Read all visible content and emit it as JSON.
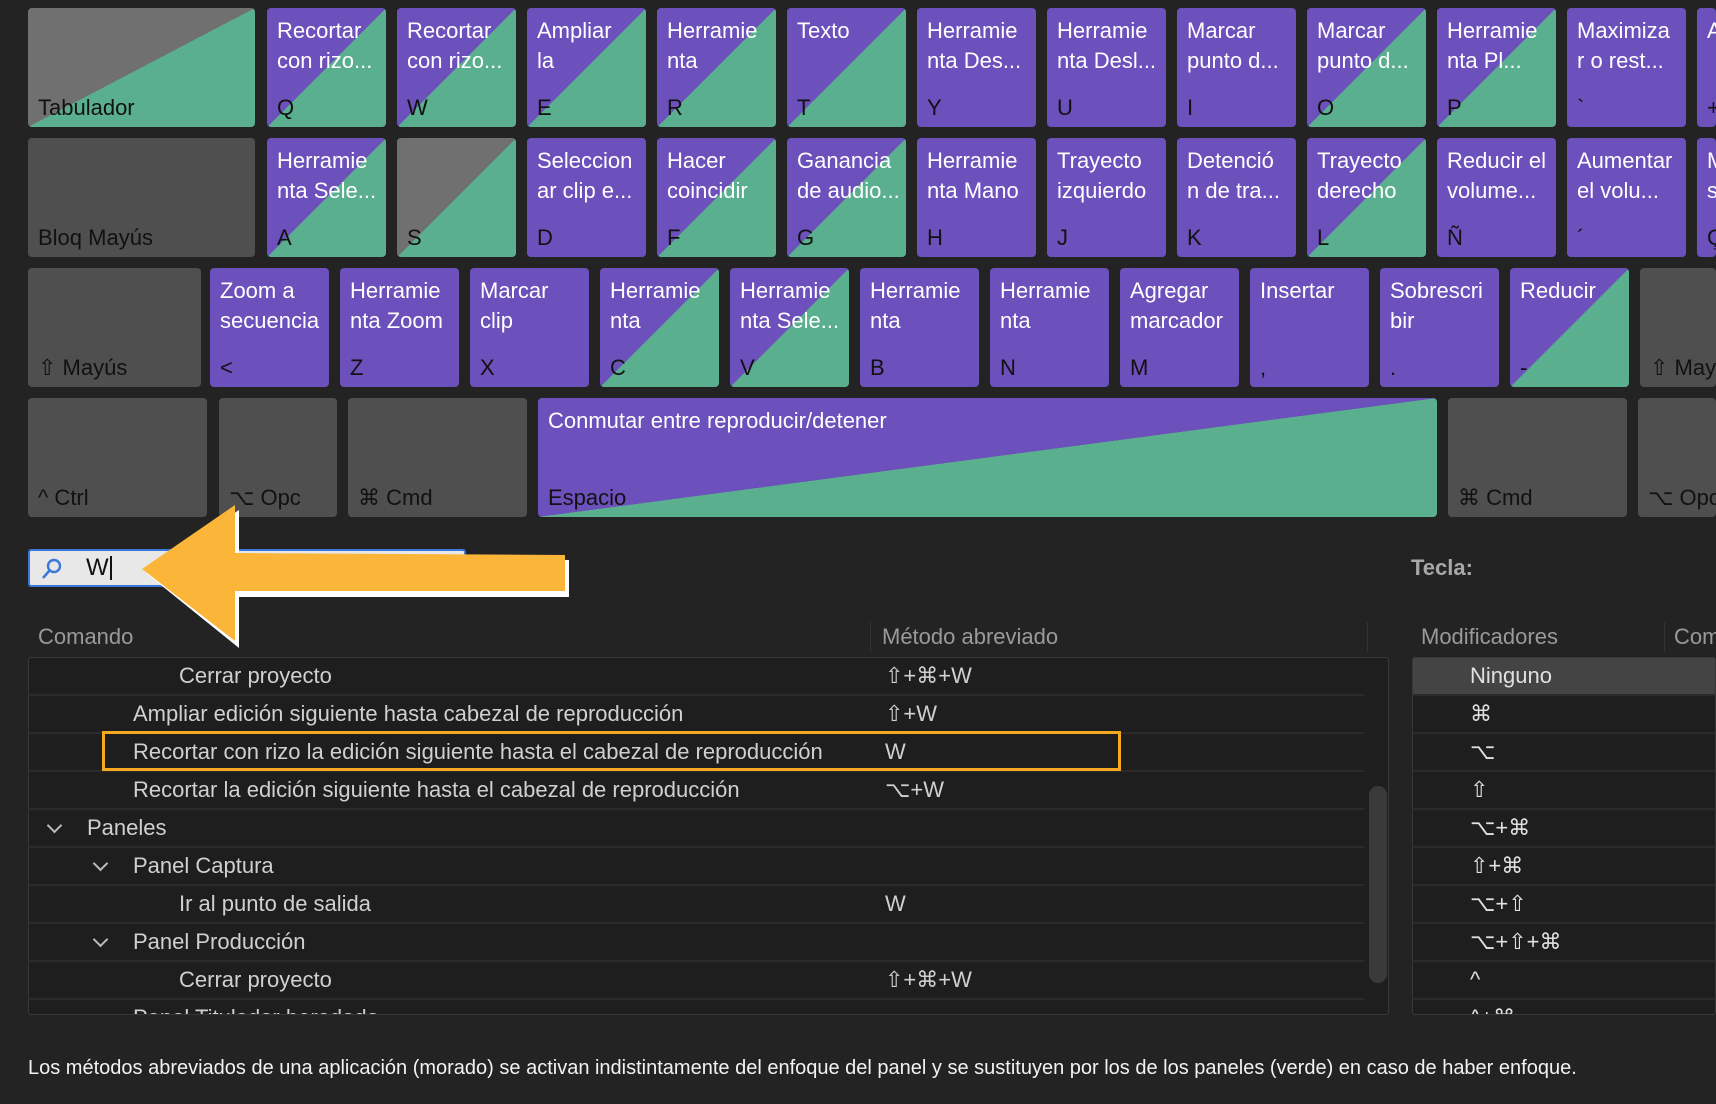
{
  "colors": {
    "app_shortcut": "#6c50bb",
    "panel_shortcut": "#5aaf8e",
    "highlight": "#f5a91e",
    "arrow": "#fbb63a"
  },
  "keyboard": {
    "rows": [
      [
        {
          "cmd": "",
          "key": "Tabulador",
          "type": "graygreen"
        },
        {
          "cmd": "Recortar\ncon rizo...",
          "key": "Q",
          "type": "both"
        },
        {
          "cmd": "Recortar\ncon rizo...",
          "key": "W",
          "type": "both"
        },
        {
          "cmd": "Ampliar\nla",
          "key": "E",
          "type": "both"
        },
        {
          "cmd": "Herramie\nnta",
          "key": "R",
          "type": "both"
        },
        {
          "cmd": "Texto",
          "key": "T",
          "type": "both"
        },
        {
          "cmd": "Herramie\nnta Des...",
          "key": "Y",
          "type": "purple"
        },
        {
          "cmd": "Herramie\nnta Desl...",
          "key": "U",
          "type": "purple"
        },
        {
          "cmd": "Marcar\npunto d...",
          "key": "I",
          "type": "purple"
        },
        {
          "cmd": "Marcar\npunto d...",
          "key": "O",
          "type": "both"
        },
        {
          "cmd": "Herramie\nnta Pl...",
          "key": "P",
          "type": "both"
        },
        {
          "cmd": "Maximiza\nr o rest...",
          "key": "`",
          "type": "purple"
        },
        {
          "cmd": "A",
          "key": "+",
          "type": "purple"
        }
      ],
      [
        {
          "cmd": "",
          "key": "Bloq Mayús",
          "type": "gray"
        },
        {
          "cmd": "Herramie\nnta Sele...",
          "key": "A",
          "type": "both"
        },
        {
          "cmd": "",
          "key": "S",
          "type": "graygreen"
        },
        {
          "cmd": "Seleccion\nar clip e...",
          "key": "D",
          "type": "purple"
        },
        {
          "cmd": "Hacer\ncoincidir",
          "key": "F",
          "type": "both"
        },
        {
          "cmd": "Ganancia\nde audio...",
          "key": "G",
          "type": "both"
        },
        {
          "cmd": "Herramie\nnta Mano",
          "key": "H",
          "type": "purple"
        },
        {
          "cmd": "Trayecto\nizquierdo",
          "key": "J",
          "type": "purple"
        },
        {
          "cmd": "Detenció\nn de tra...",
          "key": "K",
          "type": "purple"
        },
        {
          "cmd": "Trayecto\nderecho",
          "key": "L",
          "type": "both"
        },
        {
          "cmd": "Reducir el\nvolume...",
          "key": "Ñ",
          "type": "purple"
        },
        {
          "cmd": "Aumentar\nel volu...",
          "key": "´",
          "type": "purple"
        },
        {
          "cmd": "M\ns",
          "key": "Ç",
          "type": "purple"
        }
      ],
      [
        {
          "cmd": "",
          "key": "⇧ Mayús",
          "type": "gray"
        },
        {
          "cmd": "Zoom a\nsecuencia",
          "key": "<",
          "type": "purple"
        },
        {
          "cmd": "Herramie\nnta Zoom",
          "key": "Z",
          "type": "purple"
        },
        {
          "cmd": "Marcar\nclip",
          "key": "X",
          "type": "purple"
        },
        {
          "cmd": "Herramie\nnta",
          "key": "C",
          "type": "both"
        },
        {
          "cmd": "Herramie\nnta Sele...",
          "key": "V",
          "type": "both"
        },
        {
          "cmd": "Herramie\nnta",
          "key": "B",
          "type": "purple"
        },
        {
          "cmd": "Herramie\nnta",
          "key": "N",
          "type": "purple"
        },
        {
          "cmd": "Agregar\nmarcador",
          "key": "M",
          "type": "purple"
        },
        {
          "cmd": "Insertar",
          "key": ",",
          "type": "purple"
        },
        {
          "cmd": "Sobrescri\nbir",
          "key": ".",
          "type": "purple"
        },
        {
          "cmd": "Reducir",
          "key": "-",
          "type": "both"
        },
        {
          "cmd": "",
          "key": "⇧ Mayús",
          "type": "gray"
        }
      ],
      [
        {
          "cmd": "",
          "key": "^ Ctrl",
          "type": "gray"
        },
        {
          "cmd": "",
          "key": "⌥ Opc",
          "type": "gray"
        },
        {
          "cmd": "",
          "key": "⌘ Cmd",
          "type": "gray"
        },
        {
          "cmd": "Conmutar entre reproducir/detener",
          "key": "Espacio",
          "type": "both"
        },
        {
          "cmd": "",
          "key": "⌘ Cmd",
          "type": "gray"
        },
        {
          "cmd": "",
          "key": "⌥ Opc",
          "type": "gray"
        }
      ]
    ]
  },
  "search": {
    "value": "W"
  },
  "key_label": "Tecla:",
  "table": {
    "headers": {
      "command": "Comando",
      "shortcut": "Método abreviado"
    },
    "rows": [
      {
        "level": 3,
        "command": "Cerrar proyecto",
        "shortcut": "⇧+⌘+W"
      },
      {
        "level": 2,
        "command": "Ampliar edición siguiente hasta cabezal de reproducción",
        "shortcut": "⇧+W"
      },
      {
        "level": 2,
        "command": "Recortar con rizo la edición siguiente hasta el cabezal de reproducción",
        "shortcut": "W",
        "highlighted": true
      },
      {
        "level": 2,
        "command": "Recortar la edición siguiente hasta el cabezal de reproducción",
        "shortcut": "⌥+W"
      },
      {
        "level": 1,
        "command": "Paneles",
        "shortcut": "",
        "group": true
      },
      {
        "level": 2,
        "command": "Panel Captura",
        "shortcut": "",
        "group": true
      },
      {
        "level": 3,
        "command": "Ir al punto de salida",
        "shortcut": "W"
      },
      {
        "level": 2,
        "command": "Panel Producción",
        "shortcut": "",
        "group": true
      },
      {
        "level": 3,
        "command": "Cerrar proyecto",
        "shortcut": "⇧+⌘+W"
      },
      {
        "level": 2,
        "command": "Panel Titulador heredado",
        "shortcut": "",
        "group": true
      }
    ]
  },
  "modifiers": {
    "headers": {
      "modifiers": "Modificadores",
      "command": "Com"
    },
    "items": [
      "Ninguno",
      "⌘",
      "⌥",
      "⇧",
      "⌥+⌘",
      "⇧+⌘",
      "⌥+⇧",
      "⌥+⇧+⌘",
      "^",
      "^+⌘"
    ],
    "selected": 0
  },
  "footer": "Los métodos abreviados de una aplicación (morado) se activan indistintamente del enfoque del panel y se sustituyen por los de los paneles (verde) en caso de haber enfoque."
}
